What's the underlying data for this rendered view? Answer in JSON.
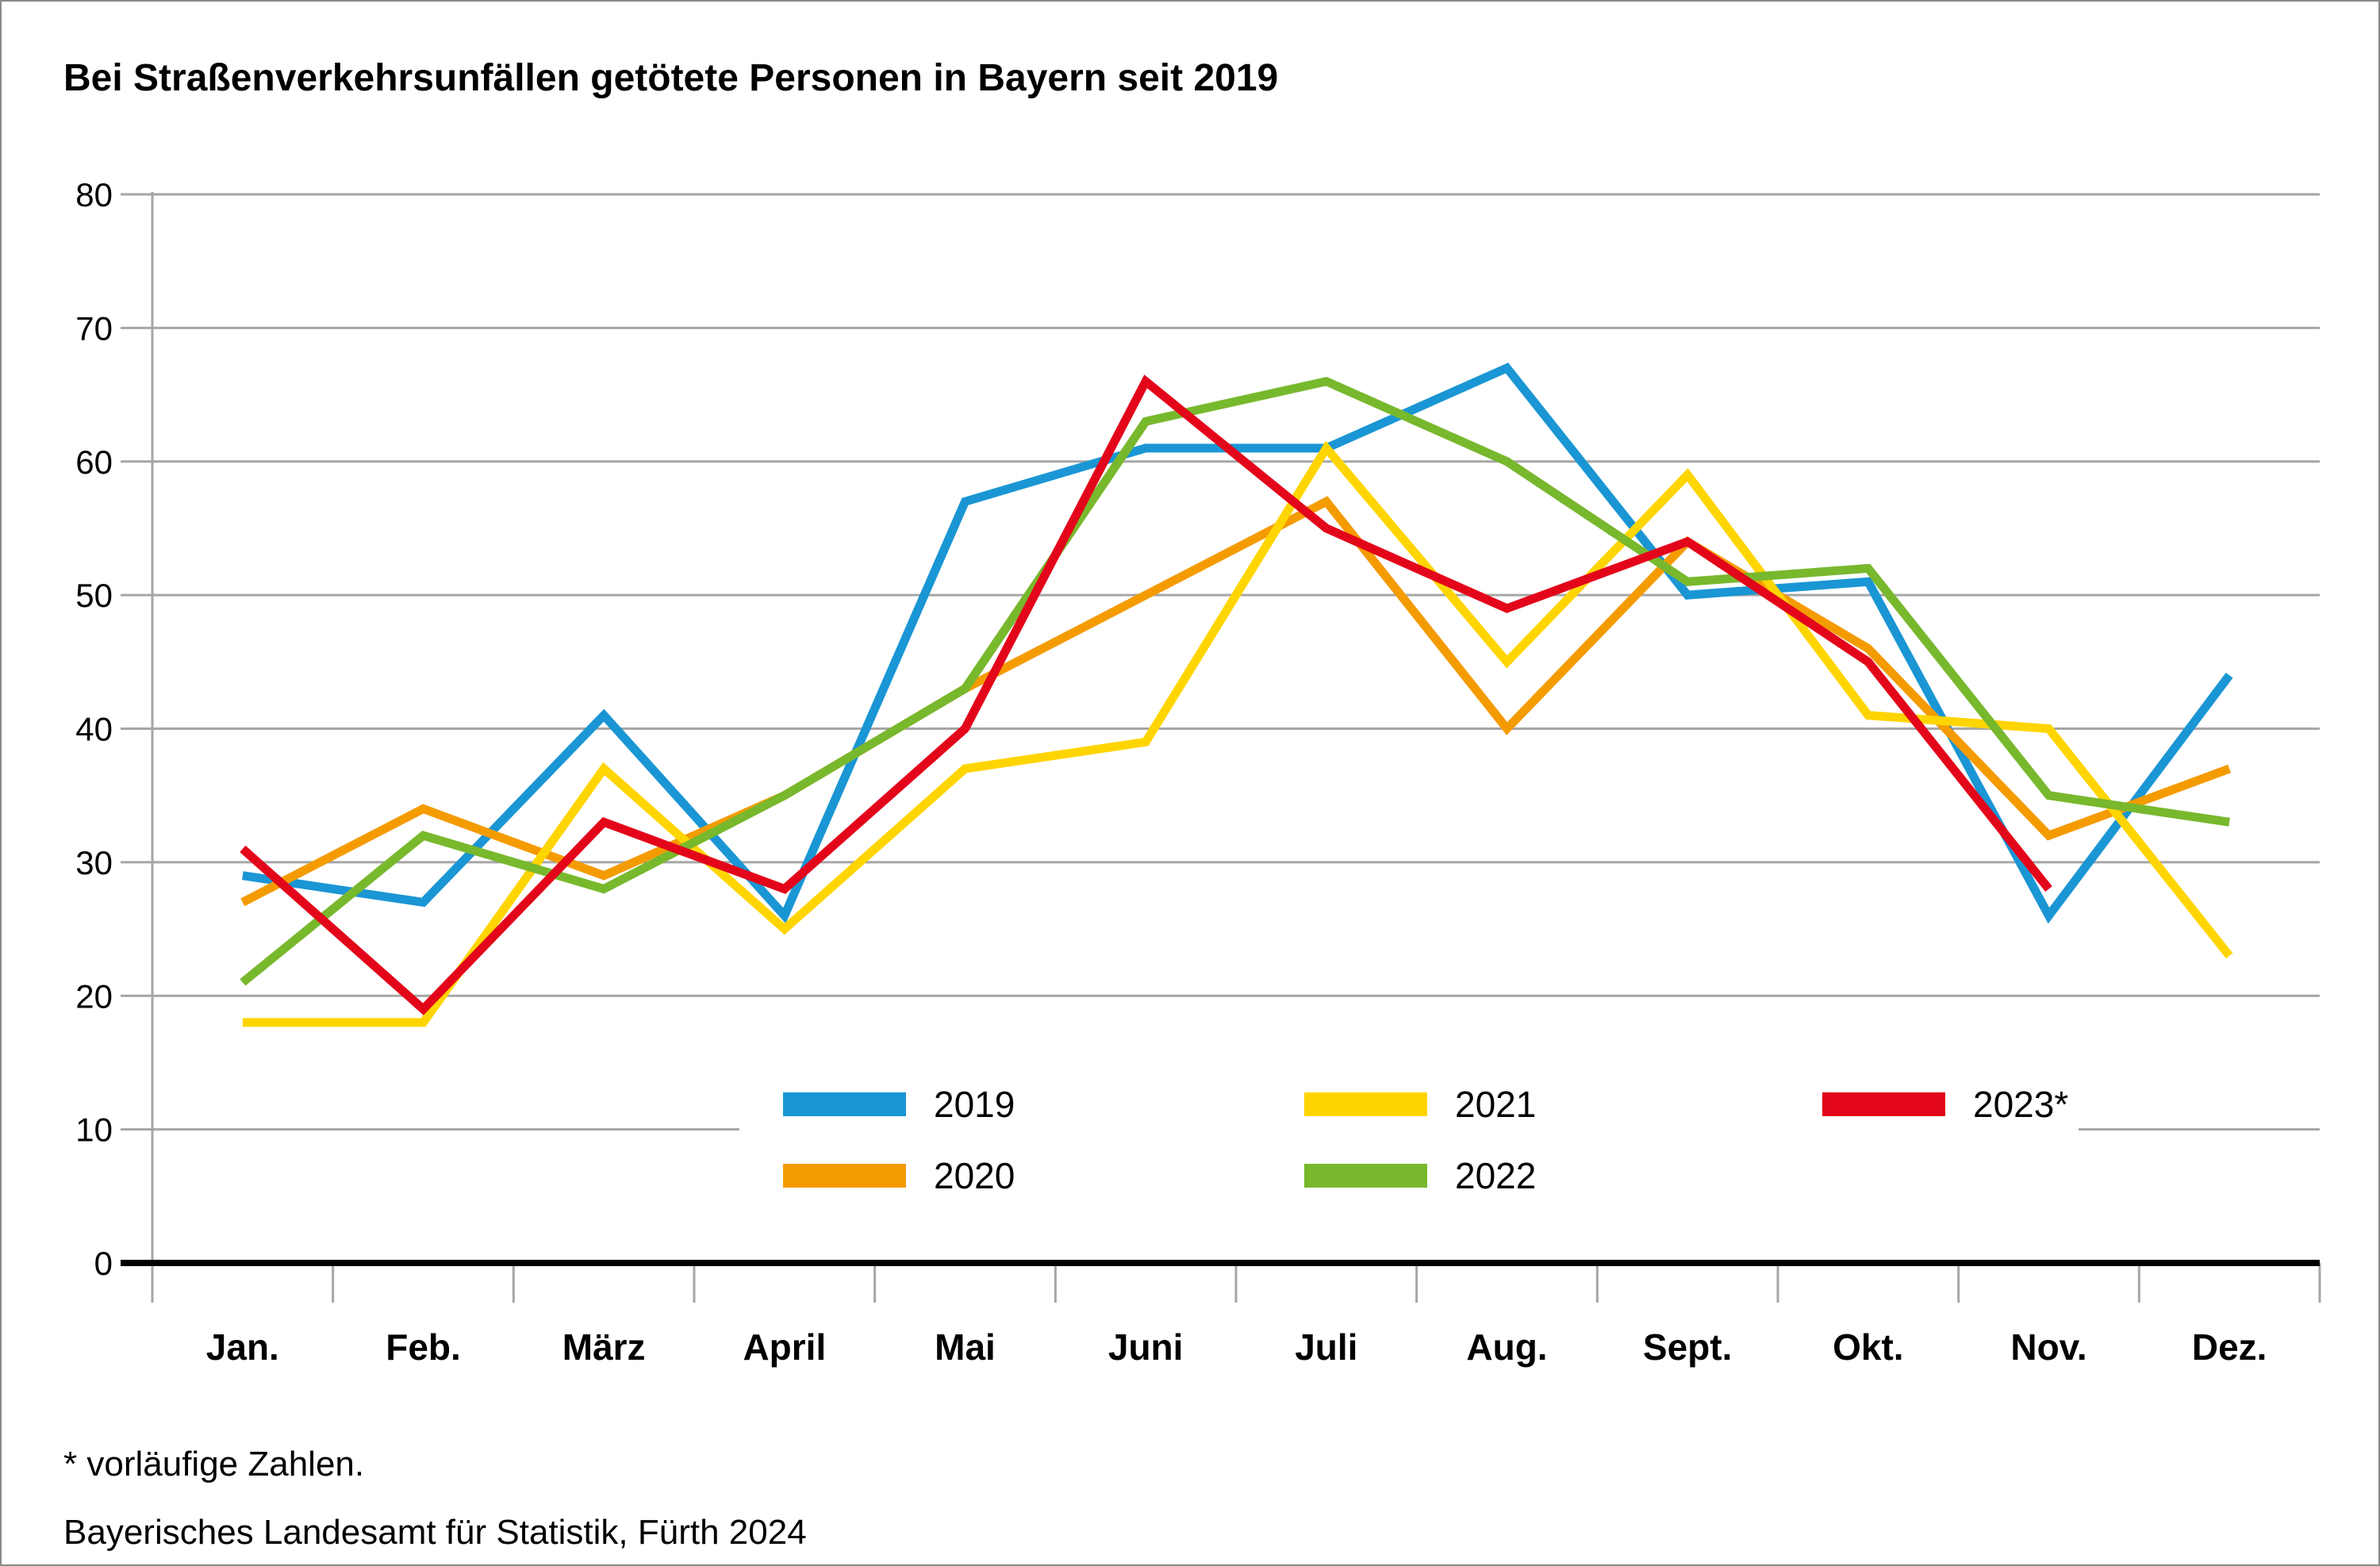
{
  "title": "Bei Straßenverkehrsunfällen getötete Personen in Bayern seit 2019",
  "footnote": "* vorläufige Zahlen.",
  "source": "Bayerisches Landesamt für Statistik, Fürth 2024",
  "colors": {
    "grid": "#a6a6a6",
    "axis": "#000000",
    "title_text": "#000000",
    "footnote_text": "#000000",
    "source_text": "#9d9d9c",
    "background": "#ffffff"
  },
  "chart_data": {
    "type": "line",
    "title": "Bei Straßenverkehrsunfällen getötete Personen in Bayern seit 2019",
    "xlabel": "",
    "ylabel": "",
    "ylim": [
      0,
      80
    ],
    "ytick_step": 10,
    "grid": true,
    "legend_position": "bottom-center-inside",
    "categories": [
      "Jan.",
      "Feb.",
      "März",
      "April",
      "Mai",
      "Juni",
      "Juli",
      "Aug.",
      "Sept.",
      "Okt.",
      "Nov.",
      "Dez."
    ],
    "series": [
      {
        "name": "2019",
        "color": "#1a96d4",
        "values": [
          29,
          27,
          41,
          26,
          57,
          61,
          61,
          67,
          50,
          51,
          26,
          44
        ]
      },
      {
        "name": "2020",
        "color": "#f49b00",
        "values": [
          27,
          34,
          29,
          35,
          43,
          50,
          57,
          40,
          54,
          46,
          32,
          37
        ]
      },
      {
        "name": "2021",
        "color": "#ffd500",
        "values": [
          18,
          18,
          37,
          25,
          37,
          39,
          61,
          45,
          59,
          41,
          40,
          23
        ]
      },
      {
        "name": "2022",
        "color": "#78b82d",
        "values": [
          21,
          32,
          28,
          35,
          43,
          63,
          66,
          60,
          51,
          52,
          35,
          33
        ]
      },
      {
        "name": "2023*",
        "color": "#e3051a",
        "values": [
          31,
          19,
          33,
          28,
          40,
          66,
          55,
          49,
          54,
          45,
          28
        ]
      }
    ]
  }
}
